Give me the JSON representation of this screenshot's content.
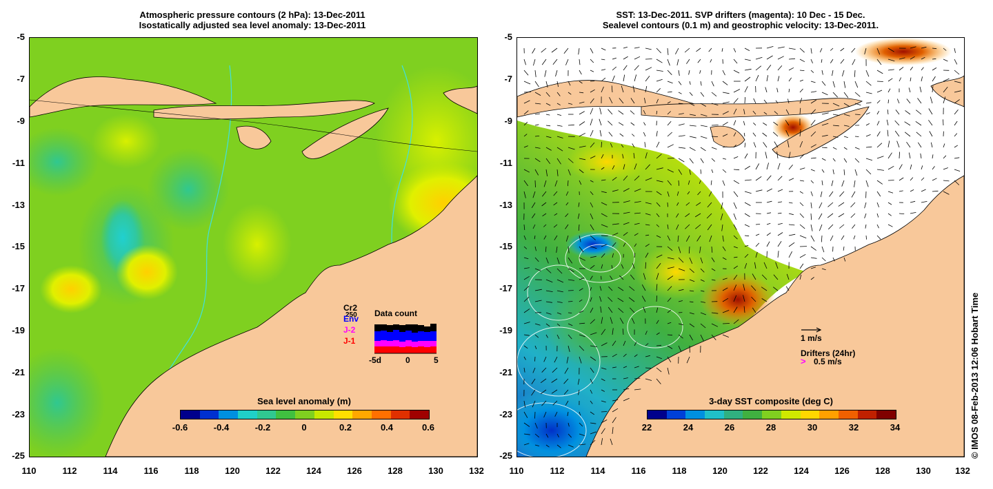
{
  "left_panel": {
    "title_line1": "Atmospheric pressure contours (2 hPa): 13-Dec-2011",
    "title_line2": "Isostatically adjusted sea level anomaly: 13-Dec-2011",
    "colorbar_title": "Sea level anomaly (m)",
    "colorbar_ticks": [
      "-0.6",
      "-0.4",
      "-0.2",
      "0",
      "0.2",
      "0.4",
      "0.6"
    ],
    "colors": [
      "#00008c",
      "#0030d0",
      "#0090e0",
      "#20d0c8",
      "#30c890",
      "#40c040",
      "#7fd020",
      "#c8e800",
      "#ffe000",
      "#ffa800",
      "#ff7000",
      "#e03000",
      "#a00000"
    ],
    "legend_sat_labels": [
      "Cr2",
      "Env",
      "J-2",
      "J-1"
    ],
    "legend_sat_colors": [
      "#000000",
      "#0000ff",
      "#ff00ff",
      "#ff0000"
    ],
    "legend_count_top": "250",
    "legend_title": "Data count",
    "legend_axis": [
      "-5d",
      "0",
      "5"
    ]
  },
  "right_panel": {
    "title_line1": "SST: 13-Dec-2011. SVP drifters (magenta): 10 Dec - 15 Dec.",
    "title_line2": "Sealevel contours (0.1 m) and geostrophic velocity: 13-Dec-2011.",
    "colorbar_title": "3-day SST composite (deg C)",
    "colorbar_ticks": [
      "22",
      "24",
      "26",
      "28",
      "30",
      "32",
      "34"
    ],
    "colors": [
      "#00008c",
      "#0040d8",
      "#0090e0",
      "#20c0c8",
      "#30b080",
      "#40b040",
      "#80d020",
      "#d0e800",
      "#ffd800",
      "#ffa000",
      "#f06000",
      "#c02000",
      "#800000"
    ],
    "velocity_scale_label": "1 m/s",
    "drifters_label": "Drifters (24hr)",
    "drifters_scale_label": "0.5 m/s",
    "drifter_color": "#ff00ff"
  },
  "axes": {
    "y_ticks": [
      "-5",
      "-7",
      "-9",
      "-11",
      "-13",
      "-15",
      "-17",
      "-19",
      "-21",
      "-23",
      "-25"
    ],
    "x_ticks": [
      "110",
      "112",
      "114",
      "116",
      "118",
      "120",
      "122",
      "124",
      "126",
      "128",
      "130",
      "132"
    ]
  },
  "credit": "© IMOS 08-Feb-2013 12:06 Hobart Time",
  "map_colors": {
    "land": "#f8c89a",
    "ocean_left": "#7fd020",
    "contour": "#40e0e0",
    "no_data": "#ffffff"
  }
}
